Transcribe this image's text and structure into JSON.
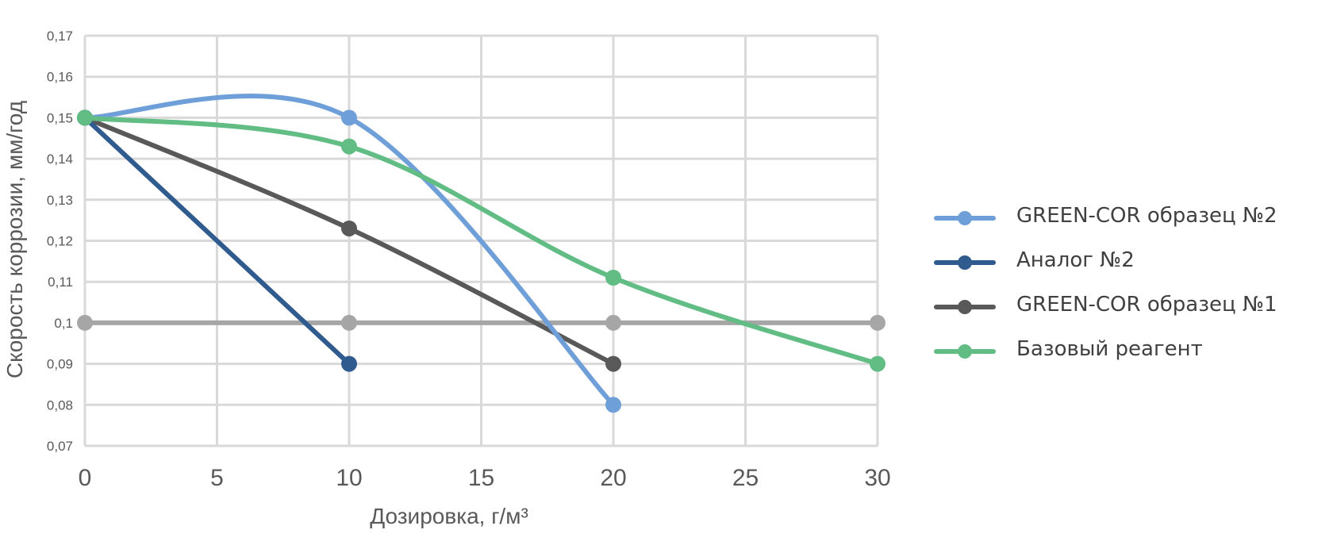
{
  "chart_data": {
    "type": "line",
    "xlabel": "Дозировка, г/м³",
    "ylabel": "Скорость коррозии, мм/год",
    "xlim": [
      0,
      30
    ],
    "ylim": [
      0.07,
      0.17
    ],
    "x_ticks": [
      "0",
      "5",
      "10",
      "15",
      "20",
      "25",
      "30"
    ],
    "y_ticks": [
      "0,07",
      "0,08",
      "0,09",
      "0,1",
      "0,11",
      "0,12",
      "0,13",
      "0,14",
      "0,15",
      "0,16",
      "0,17"
    ],
    "grid": true,
    "legend_position": "right",
    "series": [
      {
        "name": "GREEN-COR образец №2",
        "color": "#6f9fd8",
        "smooth": true,
        "x": [
          0,
          10,
          20
        ],
        "y": [
          0.15,
          0.15,
          0.08
        ]
      },
      {
        "name": "Аналог №2",
        "color": "#2f5b8e",
        "smooth": false,
        "x": [
          0,
          10
        ],
        "y": [
          0.15,
          0.09
        ]
      },
      {
        "name": "GREEN-COR образец №1",
        "color": "#595959",
        "smooth": true,
        "x": [
          0,
          10,
          20
        ],
        "y": [
          0.15,
          0.123,
          0.09
        ]
      },
      {
        "name": "Базовый реагент",
        "color": "#62bd85",
        "smooth": true,
        "x": [
          0,
          10,
          20,
          30
        ],
        "y": [
          0.15,
          0.143,
          0.111,
          0.09
        ]
      },
      {
        "color": "#a6a6a6",
        "smooth": false,
        "x": [
          0,
          10,
          20,
          30
        ],
        "y": [
          0.1,
          0.1,
          0.1,
          0.1
        ]
      }
    ],
    "legend_order": [
      0,
      1,
      2,
      3
    ]
  }
}
